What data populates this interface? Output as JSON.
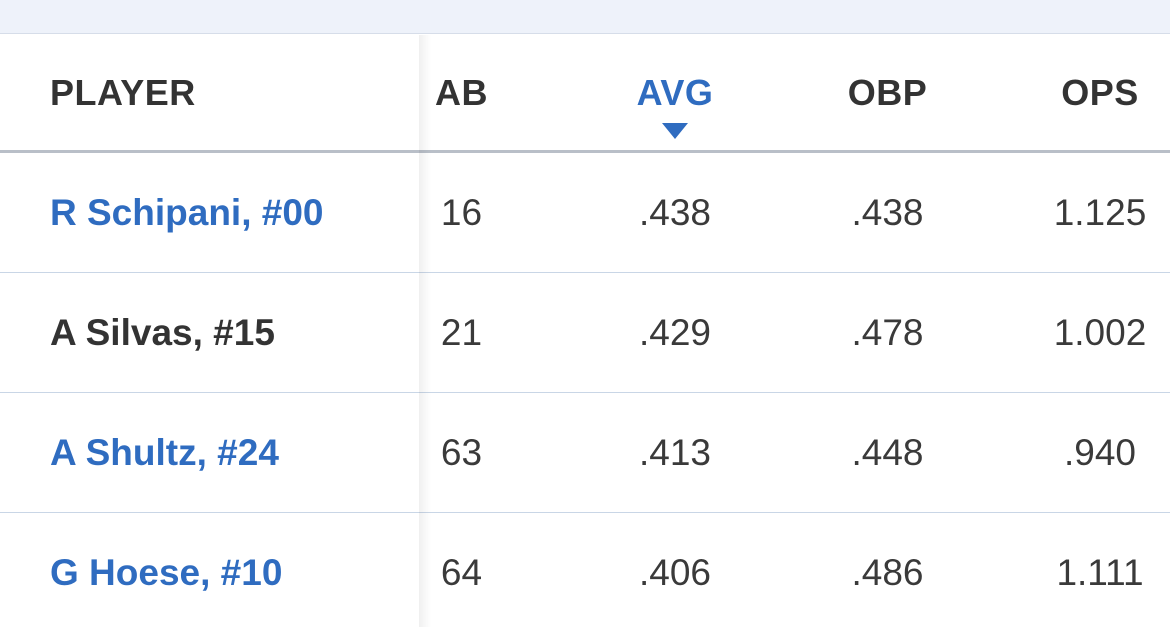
{
  "table": {
    "headers": {
      "player": "PLAYER",
      "ab": "AB",
      "avg": "AVG",
      "obp": "OBP",
      "ops": "OPS"
    },
    "sort": {
      "column": "AVG",
      "direction": "descending",
      "icon": "sort-down-arrow-icon",
      "color": "#2f6cc0"
    },
    "rows": [
      {
        "player": "R Schipani, #00",
        "linked": true,
        "ab": "16",
        "avg": ".438",
        "obp": ".438",
        "ops": "1.125"
      },
      {
        "player": "A Silvas, #15",
        "linked": false,
        "ab": "21",
        "avg": ".429",
        "obp": ".478",
        "ops": "1.002"
      },
      {
        "player": "A Shultz, #24",
        "linked": true,
        "ab": "63",
        "avg": ".413",
        "obp": ".448",
        "ops": ".940"
      },
      {
        "player": "G Hoese, #10",
        "linked": true,
        "ab": "64",
        "avg": ".406",
        "obp": ".486",
        "ops": "1.111"
      }
    ]
  },
  "colors": {
    "link": "#2f6cc0",
    "text": "#333333",
    "top_strip": "#eef2fa",
    "row_divider": "#c9d6e6"
  }
}
